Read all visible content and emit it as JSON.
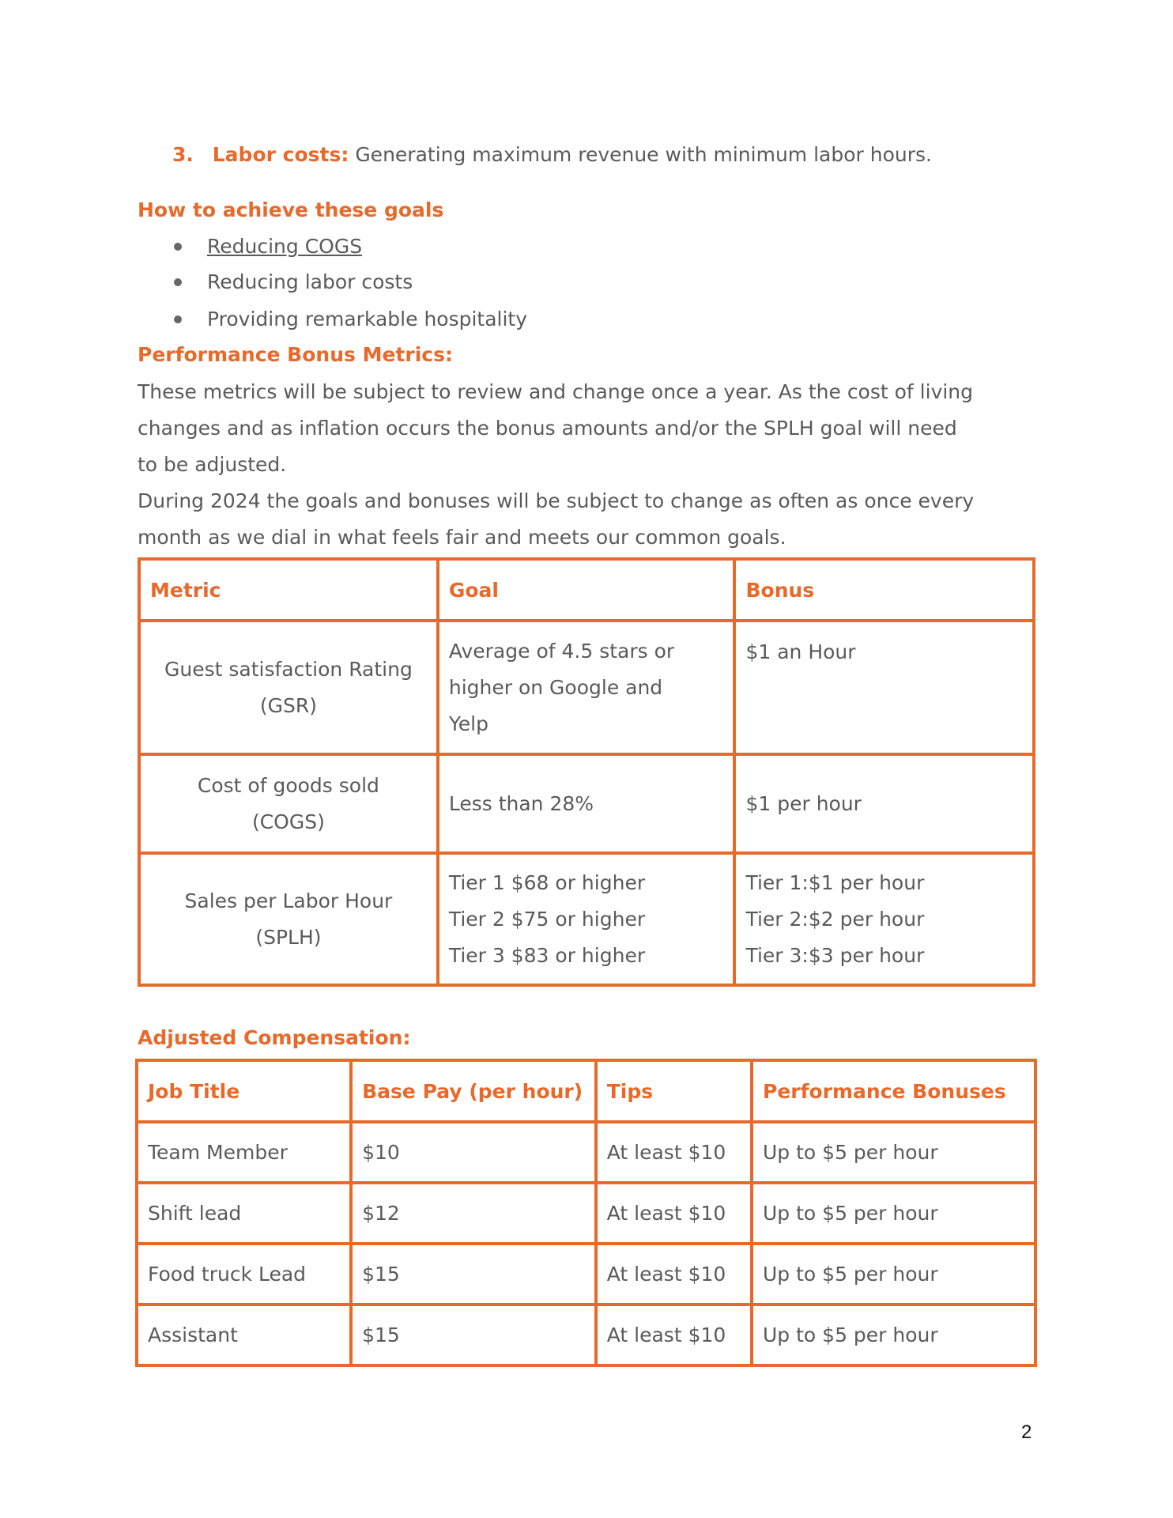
{
  "goals_list": {
    "number": "3.",
    "label": "Labor costs:",
    "text": "Generating maximum revenue with minimum labor hours."
  },
  "achieve": {
    "heading": "How to achieve these goals",
    "items": [
      "Reducing COGS",
      "Reducing labor costs",
      "Providing remarkable hospitality"
    ]
  },
  "bonus_metrics": {
    "heading": "Performance Bonus Metrics:",
    "paragraph_lines": [
      "These metrics will be subject to review and change once a year. As the cost of living",
      "changes and as inflation occurs the bonus amounts and/or the SPLH goal will need",
      "to be adjusted.",
      "During 2024 the goals and bonuses will be subject to change as often as once every",
      "month as we dial in what feels fair and meets our common goals."
    ],
    "table": {
      "headers": [
        "Metric",
        "Goal",
        "Bonus"
      ],
      "rows": [
        {
          "metric": [
            "Guest satisfaction Rating",
            "(GSR)"
          ],
          "goal": [
            "Average of 4.5 stars or",
            "higher on Google and",
            "Yelp"
          ],
          "bonus": [
            "$1 an Hour"
          ]
        },
        {
          "metric": [
            "Cost of goods sold",
            "(COGS)"
          ],
          "goal": [
            "Less than 28%"
          ],
          "bonus": [
            "$1 per hour"
          ]
        },
        {
          "metric": [
            "Sales per Labor Hour",
            "(SPLH)"
          ],
          "goal": [
            "Tier 1 $68 or higher",
            "Tier 2 $75 or higher",
            "Tier 3 $83 or higher"
          ],
          "bonus": [
            "Tier 1:$1 per hour",
            "Tier 2:$2 per hour",
            "Tier 3:$3 per hour"
          ]
        }
      ]
    }
  },
  "compensation": {
    "heading": "Adjusted Compensation:",
    "headers": [
      "Job Title",
      "Base Pay (per hour)",
      "Tips",
      "Performance Bonuses"
    ],
    "rows": [
      [
        "Team Member",
        "$10",
        "At least $10",
        "Up to $5 per hour"
      ],
      [
        "Shift lead",
        "$12",
        "At least $10",
        "Up to $5 per hour"
      ],
      [
        "Food truck Lead",
        "$15",
        "At least $10",
        "Up to $5 per hour"
      ],
      [
        "Assistant",
        "$15",
        "At least $10",
        "Up to $5 per hour"
      ]
    ]
  },
  "page_number": "2",
  "colors": {
    "accent": "#e8692a",
    "text": "#5a5a5a"
  }
}
